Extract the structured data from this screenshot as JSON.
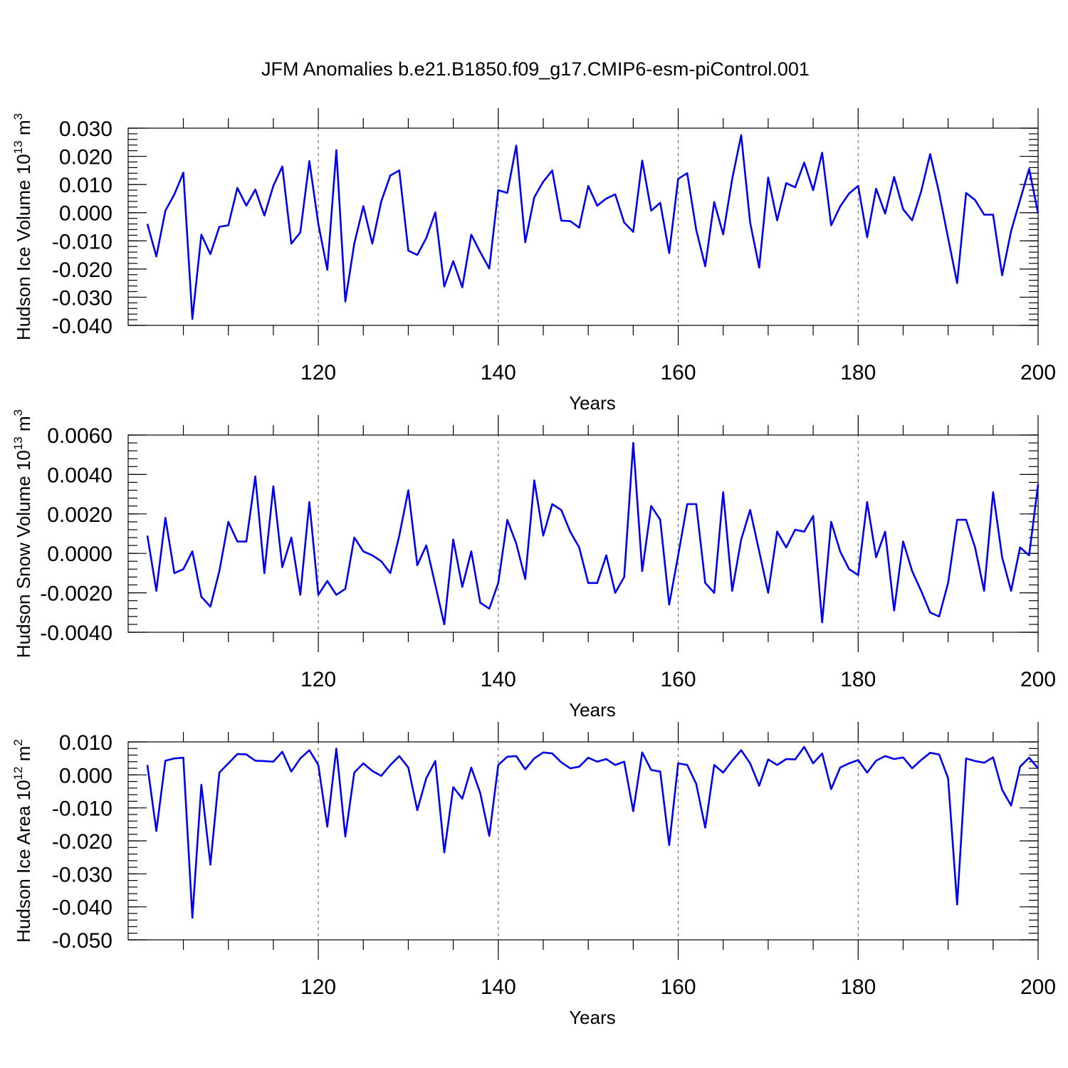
{
  "title": "JFM Anomalies b.e21.B1850.f09_g17.CMIP6-esm-piControl.001",
  "series_color": "#0000ee",
  "chart_data": [
    {
      "type": "line",
      "ylabel_main": "Hudson Ice Volume 10",
      "ylabel_exp": "13",
      "ylabel_unit": " m",
      "ylabel_unit_exp": "3",
      "xlabel": "Years",
      "xlim": [
        101,
        200
      ],
      "ylim": [
        -0.04,
        0.03
      ],
      "yticks": [
        "0.030",
        "0.020",
        "0.010",
        "0.000",
        "-0.010",
        "-0.020",
        "-0.030",
        "-0.040"
      ],
      "ytick_values": [
        0.03,
        0.02,
        0.01,
        0.0,
        -0.01,
        -0.02,
        -0.03,
        -0.04
      ],
      "xticks": [
        "120",
        "140",
        "160",
        "180",
        "200"
      ],
      "xtick_values": [
        120,
        140,
        160,
        180,
        200
      ],
      "grid_x": [
        120,
        140,
        160,
        180
      ],
      "x_start": 101,
      "values": [
        -0.004,
        -0.0155,
        0.0007,
        0.0065,
        0.0142,
        -0.0377,
        -0.0078,
        -0.0147,
        -0.005,
        -0.0045,
        0.0088,
        0.0025,
        0.0082,
        -0.001,
        0.0095,
        0.0164,
        -0.011,
        -0.007,
        0.0183,
        -0.004,
        -0.0203,
        0.0222,
        -0.0315,
        -0.011,
        0.0023,
        -0.011,
        0.004,
        0.0132,
        0.015,
        -0.0135,
        -0.015,
        -0.009,
        0.0001,
        -0.0262,
        -0.0172,
        -0.0265,
        -0.0078,
        -0.014,
        -0.0198,
        0.008,
        0.007,
        0.0238,
        -0.0105,
        0.0055,
        0.011,
        0.015,
        -0.0028,
        -0.003,
        -0.0053,
        0.0095,
        0.0025,
        0.005,
        0.0065,
        -0.0035,
        -0.0068,
        0.0185,
        0.0007,
        0.0035,
        -0.0143,
        0.012,
        0.014,
        -0.006,
        -0.019,
        0.0038,
        -0.0077,
        0.012,
        0.0275,
        -0.0035,
        -0.0195,
        0.0125,
        -0.0027,
        0.0105,
        0.009,
        0.0178,
        0.008,
        0.0213,
        -0.0045,
        0.0022,
        0.0068,
        0.0095,
        -0.0087,
        0.0085,
        -0.0003,
        0.0127,
        0.0012,
        -0.0027,
        0.0075,
        0.0208,
        0.007,
        -0.009,
        -0.025,
        0.007,
        0.0045,
        -0.0007,
        -0.0007,
        -0.0222,
        -0.0065,
        0.0045,
        0.0155,
        -0.0002
      ]
    },
    {
      "type": "line",
      "ylabel_main": "Hudson Snow Volume 10",
      "ylabel_exp": "13",
      "ylabel_unit": " m",
      "ylabel_unit_exp": "3",
      "xlabel": "Years",
      "xlim": [
        101,
        200
      ],
      "ylim": [
        -0.004,
        0.006
      ],
      "yticks": [
        "0.0060",
        "0.0040",
        "0.0020",
        "0.0000",
        "-0.0020",
        "-0.0040"
      ],
      "ytick_values": [
        0.006,
        0.004,
        0.002,
        0.0,
        -0.002,
        -0.004
      ],
      "xticks": [
        "120",
        "140",
        "160",
        "180",
        "200"
      ],
      "xtick_values": [
        120,
        140,
        160,
        180,
        200
      ],
      "grid_x": [
        120,
        140,
        160,
        180
      ],
      "x_start": 101,
      "values": [
        0.0009,
        -0.0019,
        0.0018,
        -0.001,
        -0.0008,
        0.0001,
        -0.0022,
        -0.0027,
        -0.0009,
        0.0016,
        0.0006,
        0.0006,
        0.0039,
        -0.001,
        0.0034,
        -0.0007,
        0.0008,
        -0.0021,
        0.0026,
        -0.0021,
        -0.0014,
        -0.0021,
        -0.0018,
        0.0008,
        0.0001,
        -0.0001,
        -0.0004,
        -0.001,
        0.0009,
        0.0032,
        -0.0006,
        0.0004,
        -0.0016,
        -0.0036,
        0.0007,
        -0.0017,
        0.0001,
        -0.0025,
        -0.0028,
        -0.0015,
        0.0017,
        0.0005,
        -0.0013,
        0.0037,
        0.0009,
        0.0025,
        0.0022,
        0.0011,
        0.0003,
        -0.0015,
        -0.0015,
        -0.0001,
        -0.002,
        -0.0012,
        0.0056,
        -0.0009,
        0.0024,
        0.0017,
        -0.0026,
        -0.0001,
        0.0025,
        0.0025,
        -0.0015,
        -0.002,
        0.0031,
        -0.0019,
        0.0007,
        0.0022,
        0.0001,
        -0.002,
        0.0011,
        0.0003,
        0.0012,
        0.0011,
        0.0019,
        -0.0035,
        0.0016,
        0.0001,
        -0.0008,
        -0.0011,
        0.0026,
        -0.0002,
        0.0011,
        -0.0029,
        0.0006,
        -0.0009,
        -0.0019,
        -0.003,
        -0.0032,
        -0.0015,
        0.0017,
        0.0017,
        0.0003,
        -0.0019,
        0.0031,
        -0.0002,
        -0.0019,
        0.0003,
        -0.0001,
        0.0035
      ]
    },
    {
      "type": "line",
      "ylabel_main": "Hudson Ice Area 10",
      "ylabel_exp": "12",
      "ylabel_unit": " m",
      "ylabel_unit_exp": "2",
      "xlabel": "Years",
      "xlim": [
        101,
        200
      ],
      "ylim": [
        -0.05,
        0.01
      ],
      "yticks": [
        "0.010",
        "0.000",
        "-0.010",
        "-0.020",
        "-0.030",
        "-0.040",
        "-0.050"
      ],
      "ytick_values": [
        0.01,
        0.0,
        -0.01,
        -0.02,
        -0.03,
        -0.04,
        -0.05
      ],
      "xticks": [
        "120",
        "140",
        "160",
        "180",
        "200"
      ],
      "xtick_values": [
        120,
        140,
        160,
        180,
        200
      ],
      "grid_x": [
        120,
        140,
        160,
        180
      ],
      "x_start": 101,
      "values": [
        0.003,
        -0.017,
        0.0043,
        0.005,
        0.0052,
        -0.0433,
        -0.003,
        -0.0272,
        0.0007,
        0.0035,
        0.0063,
        0.0062,
        0.0043,
        0.0042,
        0.004,
        0.007,
        0.001,
        0.005,
        0.0075,
        0.003,
        -0.0157,
        0.008,
        -0.0187,
        0.0007,
        0.0035,
        0.0012,
        -0.0003,
        0.003,
        0.0057,
        0.0022,
        -0.0107,
        -0.001,
        0.0042,
        -0.0235,
        -0.0037,
        -0.0072,
        0.0022,
        -0.0055,
        -0.0185,
        0.003,
        0.0055,
        0.0057,
        0.0017,
        0.005,
        0.0068,
        0.0065,
        0.0038,
        0.002,
        0.0025,
        0.0052,
        0.004,
        0.0048,
        0.003,
        0.004,
        -0.011,
        0.0068,
        0.0015,
        0.001,
        -0.0213,
        0.0035,
        0.003,
        -0.0027,
        -0.016,
        0.003,
        0.0007,
        0.0043,
        0.0075,
        0.0035,
        -0.0033,
        0.0047,
        0.003,
        0.0048,
        0.0047,
        0.0085,
        0.0035,
        0.0065,
        -0.0043,
        0.0022,
        0.0035,
        0.0045,
        0.0007,
        0.0043,
        0.0057,
        0.0048,
        0.0053,
        0.002,
        0.0045,
        0.0067,
        0.0062,
        -0.001,
        -0.0393,
        0.005,
        0.0042,
        0.0037,
        0.0053,
        -0.0045,
        -0.0093,
        0.0025,
        0.0052,
        0.002
      ]
    }
  ]
}
